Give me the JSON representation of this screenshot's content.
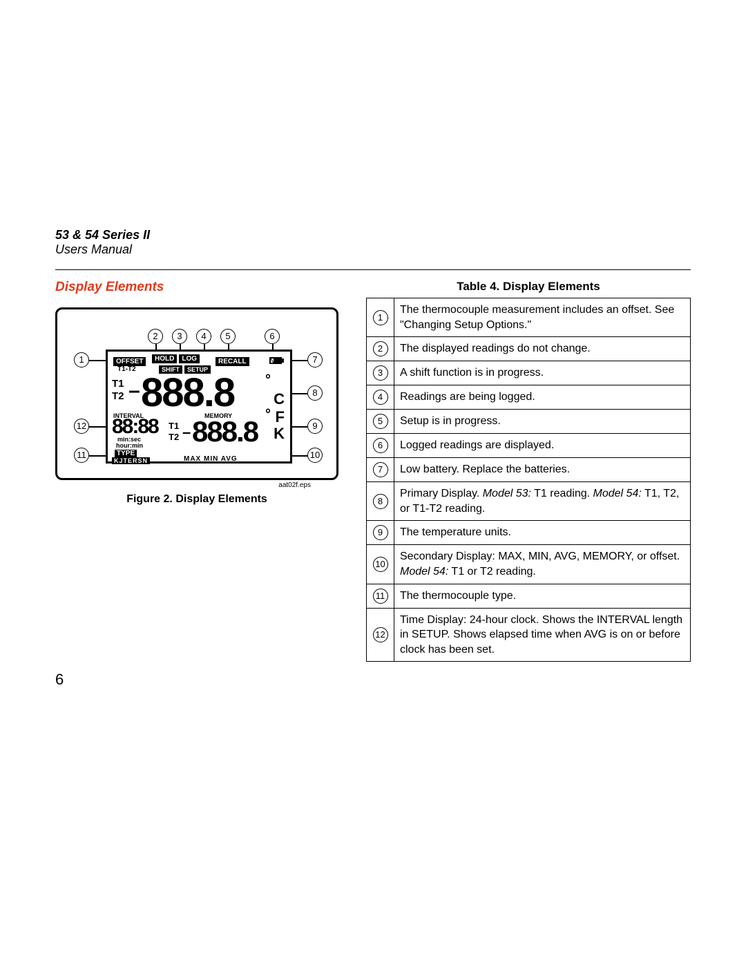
{
  "header": {
    "line1": "53 & 54 Series II",
    "line2": "Users Manual"
  },
  "section_title": "Display Elements",
  "figure": {
    "caption": "Figure 2. Display Elements",
    "eps_note": "aat02f.eps",
    "callouts": [
      "1",
      "2",
      "3",
      "4",
      "5",
      "6",
      "7",
      "8",
      "9",
      "10",
      "11",
      "12"
    ],
    "lcd": {
      "top_boxes": [
        "OFFSET",
        "HOLD",
        "LOG",
        "RECALL"
      ],
      "row2_left": "T1-T2",
      "row2_boxes": [
        "SHIFT",
        "SETUP"
      ],
      "battery_icon": "▮",
      "t1": "T1",
      "t2": "T2",
      "neg": "–",
      "primary_digits": "888.8",
      "deg": "°",
      "unit_c": "C",
      "unit_f": "F",
      "unit_k": "K",
      "interval": "INTERVAL",
      "memory": "MEMORY",
      "clock_digits": "88:88",
      "minsec": "min:sec",
      "hourmin": "hour:min",
      "sec_t1": "T1",
      "sec_t2": "T2",
      "sec_neg": "–",
      "secondary_digits": "888.8",
      "type_label": "TYPE",
      "type_letters": "KJTERSN",
      "maxminavg": "MAX MIN AVG"
    }
  },
  "table": {
    "title": "Table 4. Display Elements",
    "rows": [
      {
        "n": "1",
        "html": "The thermocouple measurement includes an offset. See \"Changing Setup Options.\""
      },
      {
        "n": "2",
        "html": "The displayed readings do not change."
      },
      {
        "n": "3",
        "html": "A shift function is in progress."
      },
      {
        "n": "4",
        "html": "Readings are being logged."
      },
      {
        "n": "5",
        "html": "Setup is in progress."
      },
      {
        "n": "6",
        "html": "Logged readings are displayed."
      },
      {
        "n": "7",
        "html": "Low battery. Replace the batteries."
      },
      {
        "n": "8",
        "html": "Primary Display. <span class=\"italic\">Model 53:</span> T1 reading. <span class=\"italic\">Model 54:</span> T1, T2, or T1-T2 reading."
      },
      {
        "n": "9",
        "html": "The temperature units."
      },
      {
        "n": "10",
        "html": "Secondary Display: MAX, MIN, AVG, MEMORY, or offset. <span class=\"italic\">Model 54:</span> T1 or T2 reading."
      },
      {
        "n": "11",
        "html": "The thermocouple type."
      },
      {
        "n": "12",
        "html": "Time Display: 24-hour clock. Shows the INTERVAL length in SETUP. Shows elapsed time when AVG is on or before clock has been set."
      }
    ]
  },
  "page_number": "6"
}
